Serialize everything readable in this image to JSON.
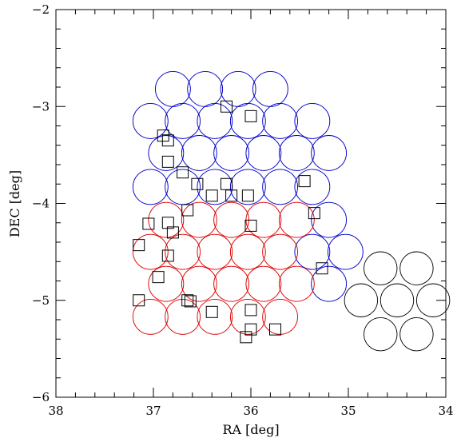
{
  "chart_data": {
    "type": "scatter",
    "title": "",
    "xlabel": "RA [deg]",
    "ylabel": "DEC [deg]",
    "xlim": [
      38,
      34
    ],
    "ylim": [
      -6,
      -2
    ],
    "x_ticks": [
      "38",
      "37",
      "36",
      "35",
      "34"
    ],
    "y_ticks": [
      "−2",
      "−3",
      "−4",
      "−5",
      "−6"
    ],
    "x_tick_values": [
      38,
      37,
      36,
      35,
      34
    ],
    "y_tick_values": [
      -2,
      -3,
      -4,
      -5,
      -6
    ],
    "grid": false,
    "series": [
      {
        "marker": "circle-outline",
        "color": "#0000cc",
        "radius_deg": 0.18,
        "points": [
          [
            36.8,
            -2.82
          ],
          [
            36.47,
            -2.82
          ],
          [
            36.13,
            -2.82
          ],
          [
            35.8,
            -2.82
          ],
          [
            37.03,
            -3.15
          ],
          [
            36.7,
            -3.15
          ],
          [
            36.37,
            -3.15
          ],
          [
            36.03,
            -3.15
          ],
          [
            35.7,
            -3.15
          ],
          [
            35.37,
            -3.15
          ],
          [
            36.87,
            -3.48
          ],
          [
            36.53,
            -3.48
          ],
          [
            36.2,
            -3.48
          ],
          [
            35.87,
            -3.48
          ],
          [
            35.53,
            -3.48
          ],
          [
            35.2,
            -3.48
          ],
          [
            37.03,
            -3.83
          ],
          [
            36.7,
            -3.83
          ],
          [
            36.37,
            -3.83
          ],
          [
            36.03,
            -3.83
          ],
          [
            35.7,
            -3.83
          ],
          [
            35.37,
            -3.83
          ],
          [
            35.2,
            -4.17
          ],
          [
            35.37,
            -4.5
          ],
          [
            35.03,
            -4.5
          ],
          [
            35.2,
            -4.83
          ]
        ]
      },
      {
        "marker": "circle-outline",
        "color": "#dd0000",
        "radius_deg": 0.18,
        "points": [
          [
            36.87,
            -4.17
          ],
          [
            36.53,
            -4.17
          ],
          [
            36.2,
            -4.17
          ],
          [
            35.87,
            -4.17
          ],
          [
            35.53,
            -4.17
          ],
          [
            37.03,
            -4.5
          ],
          [
            36.7,
            -4.5
          ],
          [
            36.37,
            -4.5
          ],
          [
            36.03,
            -4.5
          ],
          [
            35.7,
            -4.5
          ],
          [
            36.87,
            -4.83
          ],
          [
            36.53,
            -4.83
          ],
          [
            36.2,
            -4.83
          ],
          [
            35.87,
            -4.83
          ],
          [
            35.53,
            -4.83
          ],
          [
            37.03,
            -5.17
          ],
          [
            36.7,
            -5.17
          ],
          [
            36.37,
            -5.17
          ],
          [
            36.03,
            -5.17
          ],
          [
            35.7,
            -5.17
          ]
        ]
      },
      {
        "marker": "circle-outline",
        "color": "#000000",
        "radius_deg": 0.17,
        "points": [
          [
            34.67,
            -4.67
          ],
          [
            34.3,
            -4.67
          ],
          [
            34.87,
            -5.0
          ],
          [
            34.5,
            -5.0
          ],
          [
            34.13,
            -5.0
          ],
          [
            34.67,
            -5.35
          ],
          [
            34.3,
            -5.35
          ]
        ]
      },
      {
        "marker": "square-outline",
        "color": "#000000",
        "points": [
          [
            36.25,
            -3.0
          ],
          [
            36.0,
            -3.1
          ],
          [
            36.9,
            -3.3
          ],
          [
            36.85,
            -3.35
          ],
          [
            36.85,
            -3.57
          ],
          [
            36.7,
            -3.68
          ],
          [
            36.55,
            -3.8
          ],
          [
            36.25,
            -3.8
          ],
          [
            36.4,
            -3.92
          ],
          [
            36.2,
            -3.92
          ],
          [
            36.03,
            -3.92
          ],
          [
            35.45,
            -3.77
          ],
          [
            35.35,
            -4.1
          ],
          [
            36.65,
            -4.07
          ],
          [
            37.05,
            -4.21
          ],
          [
            36.85,
            -4.2
          ],
          [
            36.8,
            -4.3
          ],
          [
            36.0,
            -4.23
          ],
          [
            37.15,
            -4.43
          ],
          [
            36.85,
            -4.54
          ],
          [
            35.27,
            -4.67
          ],
          [
            36.95,
            -4.76
          ],
          [
            37.15,
            -5.0
          ],
          [
            36.65,
            -5.0
          ],
          [
            36.62,
            -5.01
          ],
          [
            36.4,
            -5.12
          ],
          [
            36.0,
            -5.1
          ],
          [
            35.75,
            -5.3
          ],
          [
            36.0,
            -5.3
          ],
          [
            36.05,
            -5.38
          ]
        ]
      }
    ]
  }
}
